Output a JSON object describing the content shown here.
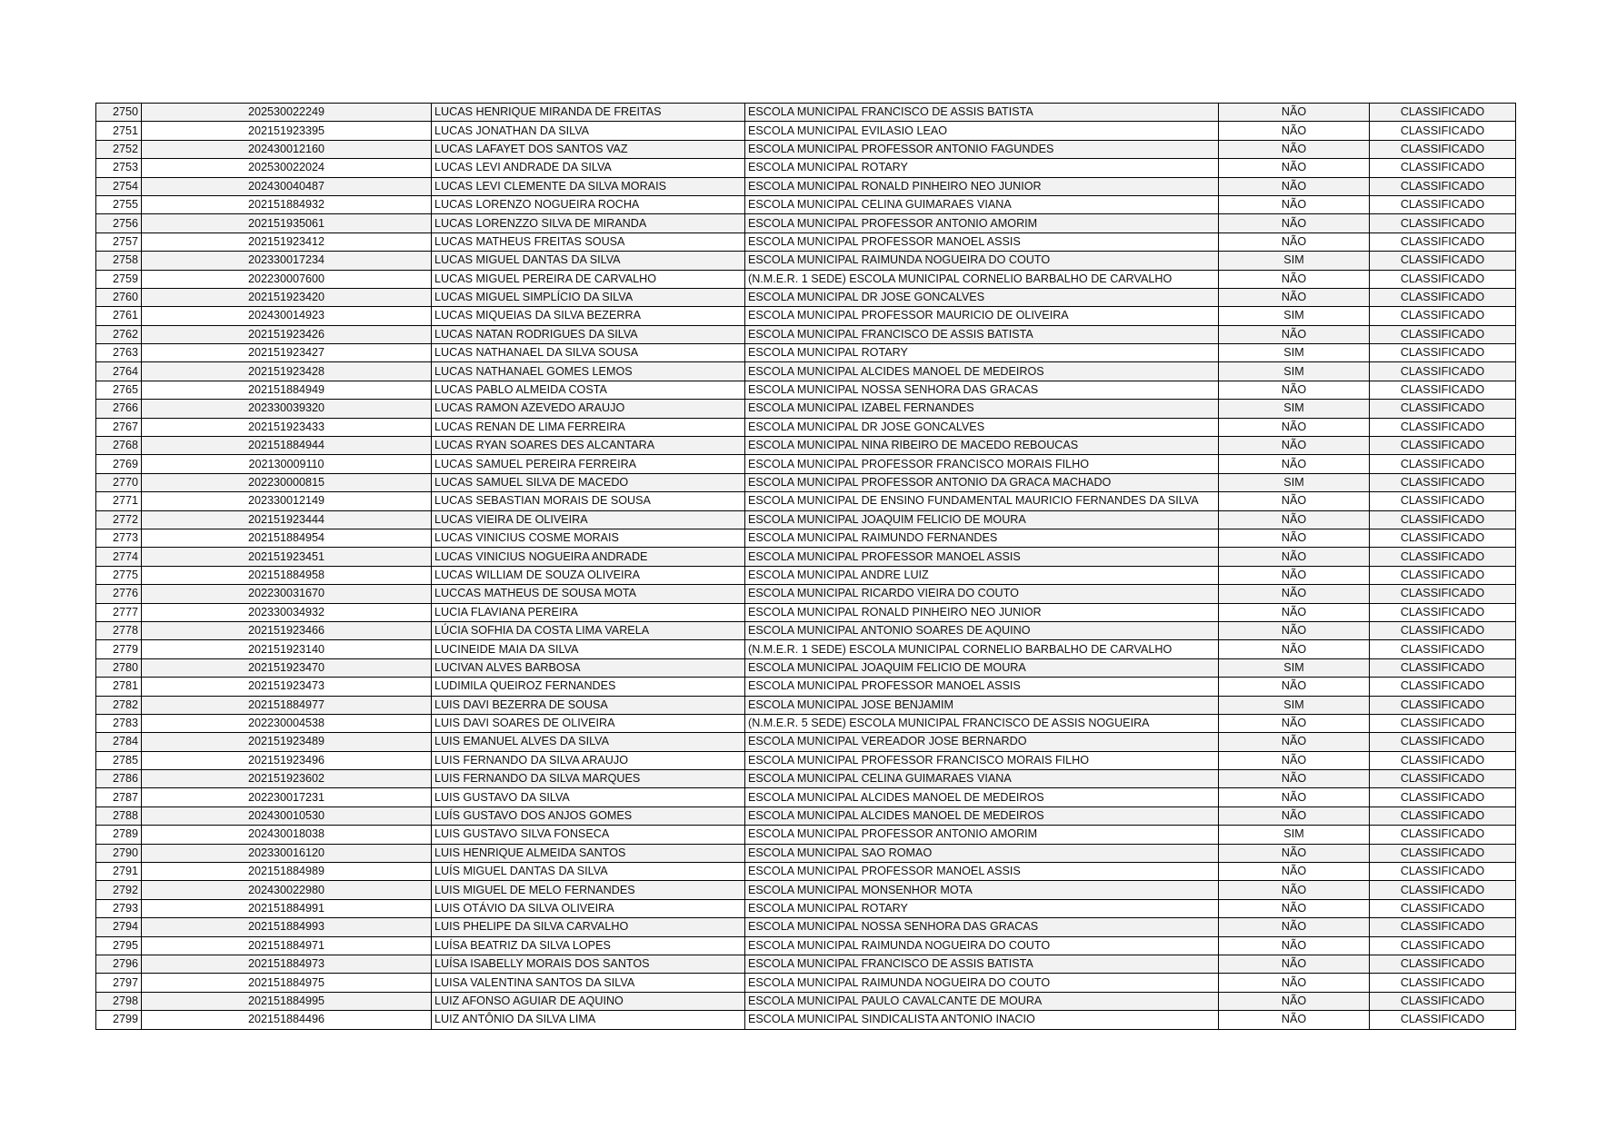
{
  "rows": [
    [
      "2750",
      "202530022249",
      "LUCAS HENRIQUE MIRANDA DE FREITAS",
      "ESCOLA MUNICIPAL FRANCISCO DE ASSIS BATISTA",
      "NÃO",
      "CLASSIFICADO"
    ],
    [
      "2751",
      "202151923395",
      "LUCAS JONATHAN DA SILVA",
      "ESCOLA MUNICIPAL EVILASIO LEAO",
      "NÃO",
      "CLASSIFICADO"
    ],
    [
      "2752",
      "202430012160",
      "LUCAS LAFAYET DOS SANTOS VAZ",
      "ESCOLA MUNICIPAL PROFESSOR ANTONIO FAGUNDES",
      "NÃO",
      "CLASSIFICADO"
    ],
    [
      "2753",
      "202530022024",
      "LUCAS LEVI ANDRADE DA SILVA",
      "ESCOLA MUNICIPAL ROTARY",
      "NÃO",
      "CLASSIFICADO"
    ],
    [
      "2754",
      "202430040487",
      "LUCAS LEVI CLEMENTE DA SILVA MORAIS",
      "ESCOLA MUNICIPAL RONALD PINHEIRO NEO JUNIOR",
      "NÃO",
      "CLASSIFICADO"
    ],
    [
      "2755",
      "202151884932",
      "LUCAS LORENZO NOGUEIRA ROCHA",
      "ESCOLA MUNICIPAL CELINA GUIMARAES VIANA",
      "NÃO",
      "CLASSIFICADO"
    ],
    [
      "2756",
      "202151935061",
      "LUCAS LORENZZO SILVA DE MIRANDA",
      "ESCOLA MUNICIPAL PROFESSOR ANTONIO AMORIM",
      "NÃO",
      "CLASSIFICADO"
    ],
    [
      "2757",
      "202151923412",
      "LUCAS MATHEUS FREITAS SOUSA",
      "ESCOLA MUNICIPAL PROFESSOR MANOEL ASSIS",
      "NÃO",
      "CLASSIFICADO"
    ],
    [
      "2758",
      "202330017234",
      "LUCAS MIGUEL DANTAS DA SILVA",
      "ESCOLA MUNICIPAL RAIMUNDA NOGUEIRA DO COUTO",
      "SIM",
      "CLASSIFICADO"
    ],
    [
      "2759",
      "202230007600",
      "LUCAS MIGUEL PEREIRA DE CARVALHO",
      "(N.M.E.R. 1 SEDE) ESCOLA MUNICIPAL CORNELIO BARBALHO DE CARVALHO",
      "NÃO",
      "CLASSIFICADO"
    ],
    [
      "2760",
      "202151923420",
      "LUCAS MIGUEL SIMPLÍCIO DA SILVA",
      "ESCOLA MUNICIPAL DR JOSE GONCALVES",
      "NÃO",
      "CLASSIFICADO"
    ],
    [
      "2761",
      "202430014923",
      "LUCAS MIQUEIAS DA SILVA BEZERRA",
      "ESCOLA MUNICIPAL PROFESSOR MAURICIO DE OLIVEIRA",
      "SIM",
      "CLASSIFICADO"
    ],
    [
      "2762",
      "202151923426",
      "LUCAS NATAN RODRIGUES DA SILVA",
      "ESCOLA MUNICIPAL FRANCISCO DE ASSIS BATISTA",
      "NÃO",
      "CLASSIFICADO"
    ],
    [
      "2763",
      "202151923427",
      "LUCAS NATHANAEL DA SILVA SOUSA",
      "ESCOLA MUNICIPAL ROTARY",
      "SIM",
      "CLASSIFICADO"
    ],
    [
      "2764",
      "202151923428",
      "LUCAS NATHANAEL GOMES LEMOS",
      "ESCOLA MUNICIPAL ALCIDES MANOEL DE MEDEIROS",
      "SIM",
      "CLASSIFICADO"
    ],
    [
      "2765",
      "202151884949",
      "LUCAS PABLO ALMEIDA COSTA",
      "ESCOLA MUNICIPAL NOSSA SENHORA DAS GRACAS",
      "NÃO",
      "CLASSIFICADO"
    ],
    [
      "2766",
      "202330039320",
      "LUCAS RAMON AZEVEDO ARAUJO",
      "ESCOLA MUNICIPAL IZABEL FERNANDES",
      "SIM",
      "CLASSIFICADO"
    ],
    [
      "2767",
      "202151923433",
      "LUCAS RENAN DE LIMA FERREIRA",
      "ESCOLA MUNICIPAL DR JOSE GONCALVES",
      "NÃO",
      "CLASSIFICADO"
    ],
    [
      "2768",
      "202151884944",
      "LUCAS RYAN SOARES DES ALCANTARA",
      "ESCOLA MUNICIPAL NINA RIBEIRO DE MACEDO REBOUCAS",
      "NÃO",
      "CLASSIFICADO"
    ],
    [
      "2769",
      "202130009110",
      "LUCAS SAMUEL PEREIRA FERREIRA",
      "ESCOLA MUNICIPAL PROFESSOR FRANCISCO MORAIS FILHO",
      "NÃO",
      "CLASSIFICADO"
    ],
    [
      "2770",
      "202230000815",
      "LUCAS SAMUEL SILVA DE MACEDO",
      "ESCOLA MUNICIPAL PROFESSOR ANTONIO DA GRACA MACHADO",
      "SIM",
      "CLASSIFICADO"
    ],
    [
      "2771",
      "202330012149",
      "LUCAS SEBASTIAN MORAIS DE SOUSA",
      "ESCOLA MUNICIPAL DE ENSINO FUNDAMENTAL MAURICIO FERNANDES DA SILVA",
      "NÃO",
      "CLASSIFICADO"
    ],
    [
      "2772",
      "202151923444",
      "LUCAS VIEIRA DE OLIVEIRA",
      "ESCOLA MUNICIPAL JOAQUIM FELICIO DE MOURA",
      "NÃO",
      "CLASSIFICADO"
    ],
    [
      "2773",
      "202151884954",
      "LUCAS VINICIUS COSME MORAIS",
      "ESCOLA MUNICIPAL RAIMUNDO FERNANDES",
      "NÃO",
      "CLASSIFICADO"
    ],
    [
      "2774",
      "202151923451",
      "LUCAS VINICIUS NOGUEIRA ANDRADE",
      "ESCOLA MUNICIPAL PROFESSOR MANOEL ASSIS",
      "NÃO",
      "CLASSIFICADO"
    ],
    [
      "2775",
      "202151884958",
      "LUCAS WILLIAM DE SOUZA OLIVEIRA",
      "ESCOLA MUNICIPAL ANDRE LUIZ",
      "NÃO",
      "CLASSIFICADO"
    ],
    [
      "2776",
      "202230031670",
      "LUCCAS MATHEUS DE SOUSA MOTA",
      "ESCOLA MUNICIPAL RICARDO VIEIRA DO COUTO",
      "NÃO",
      "CLASSIFICADO"
    ],
    [
      "2777",
      "202330034932",
      "LUCIA FLAVIANA PEREIRA",
      "ESCOLA MUNICIPAL RONALD PINHEIRO NEO JUNIOR",
      "NÃO",
      "CLASSIFICADO"
    ],
    [
      "2778",
      "202151923466",
      "LÚCIA SOFHIA DA COSTA LIMA VARELA",
      "ESCOLA MUNICIPAL ANTONIO SOARES DE AQUINO",
      "NÃO",
      "CLASSIFICADO"
    ],
    [
      "2779",
      "202151923140",
      "LUCINEIDE MAIA DA SILVA",
      "(N.M.E.R. 1 SEDE) ESCOLA MUNICIPAL CORNELIO BARBALHO DE CARVALHO",
      "NÃO",
      "CLASSIFICADO"
    ],
    [
      "2780",
      "202151923470",
      "LUCIVAN ALVES BARBOSA",
      "ESCOLA MUNICIPAL JOAQUIM FELICIO DE MOURA",
      "SIM",
      "CLASSIFICADO"
    ],
    [
      "2781",
      "202151923473",
      "LUDIMILA QUEIROZ FERNANDES",
      "ESCOLA MUNICIPAL PROFESSOR MANOEL ASSIS",
      "NÃO",
      "CLASSIFICADO"
    ],
    [
      "2782",
      "202151884977",
      "LUIS DAVI BEZERRA DE SOUSA",
      "ESCOLA MUNICIPAL JOSE BENJAMIM",
      "SIM",
      "CLASSIFICADO"
    ],
    [
      "2783",
      "202230004538",
      "LUIS DAVI SOARES DE OLIVEIRA",
      "(N.M.E.R. 5 SEDE) ESCOLA MUNICIPAL FRANCISCO DE ASSIS NOGUEIRA",
      "NÃO",
      "CLASSIFICADO"
    ],
    [
      "2784",
      "202151923489",
      "LUIS EMANUEL ALVES DA SILVA",
      "ESCOLA MUNICIPAL VEREADOR JOSE BERNARDO",
      "NÃO",
      "CLASSIFICADO"
    ],
    [
      "2785",
      "202151923496",
      "LUIS FERNANDO DA SILVA ARAUJO",
      "ESCOLA MUNICIPAL PROFESSOR FRANCISCO MORAIS FILHO",
      "NÃO",
      "CLASSIFICADO"
    ],
    [
      "2786",
      "202151923602",
      "LUIS FERNANDO DA SILVA MARQUES",
      "ESCOLA MUNICIPAL CELINA GUIMARAES VIANA",
      "NÃO",
      "CLASSIFICADO"
    ],
    [
      "2787",
      "202230017231",
      "LUIS GUSTAVO DA SILVA",
      "ESCOLA MUNICIPAL ALCIDES MANOEL DE MEDEIROS",
      "NÃO",
      "CLASSIFICADO"
    ],
    [
      "2788",
      "202430010530",
      "LUÍS GUSTAVO DOS ANJOS GOMES",
      "ESCOLA MUNICIPAL ALCIDES MANOEL DE MEDEIROS",
      "NÃO",
      "CLASSIFICADO"
    ],
    [
      "2789",
      "202430018038",
      "LUIS GUSTAVO SILVA FONSECA",
      "ESCOLA MUNICIPAL PROFESSOR ANTONIO AMORIM",
      "SIM",
      "CLASSIFICADO"
    ],
    [
      "2790",
      "202330016120",
      "LUIS HENRIQUE ALMEIDA SANTOS",
      "ESCOLA MUNICIPAL SAO ROMAO",
      "NÃO",
      "CLASSIFICADO"
    ],
    [
      "2791",
      "202151884989",
      "LUÍS MIGUEL DANTAS DA SILVA",
      "ESCOLA MUNICIPAL PROFESSOR MANOEL ASSIS",
      "NÃO",
      "CLASSIFICADO"
    ],
    [
      "2792",
      "202430022980",
      "LUIS MIGUEL DE MELO FERNANDES",
      "ESCOLA MUNICIPAL MONSENHOR MOTA",
      "NÃO",
      "CLASSIFICADO"
    ],
    [
      "2793",
      "202151884991",
      "LUIS OTÁVIO DA SILVA OLIVEIRA",
      "ESCOLA MUNICIPAL ROTARY",
      "NÃO",
      "CLASSIFICADO"
    ],
    [
      "2794",
      "202151884993",
      "LUIS PHELIPE DA SILVA CARVALHO",
      "ESCOLA MUNICIPAL NOSSA SENHORA DAS GRACAS",
      "NÃO",
      "CLASSIFICADO"
    ],
    [
      "2795",
      "202151884971",
      "LUÍSA BEATRIZ DA SILVA LOPES",
      "ESCOLA MUNICIPAL RAIMUNDA NOGUEIRA DO COUTO",
      "NÃO",
      "CLASSIFICADO"
    ],
    [
      "2796",
      "202151884973",
      "LUÍSA ISABELLY MORAIS DOS SANTOS",
      "ESCOLA MUNICIPAL FRANCISCO DE ASSIS BATISTA",
      "NÃO",
      "CLASSIFICADO"
    ],
    [
      "2797",
      "202151884975",
      "LUISA VALENTINA SANTOS DA SILVA",
      "ESCOLA MUNICIPAL RAIMUNDA NOGUEIRA DO COUTO",
      "NÃO",
      "CLASSIFICADO"
    ],
    [
      "2798",
      "202151884995",
      "LUIZ AFONSO AGUIAR DE AQUINO",
      "ESCOLA MUNICIPAL PAULO CAVALCANTE DE MOURA",
      "NÃO",
      "CLASSIFICADO"
    ],
    [
      "2799",
      "202151884496",
      "LUIZ ANTÔNIO DA SILVA LIMA",
      "ESCOLA MUNICIPAL SINDICALISTA ANTONIO INACIO",
      "NÃO",
      "CLASSIFICADO"
    ]
  ]
}
